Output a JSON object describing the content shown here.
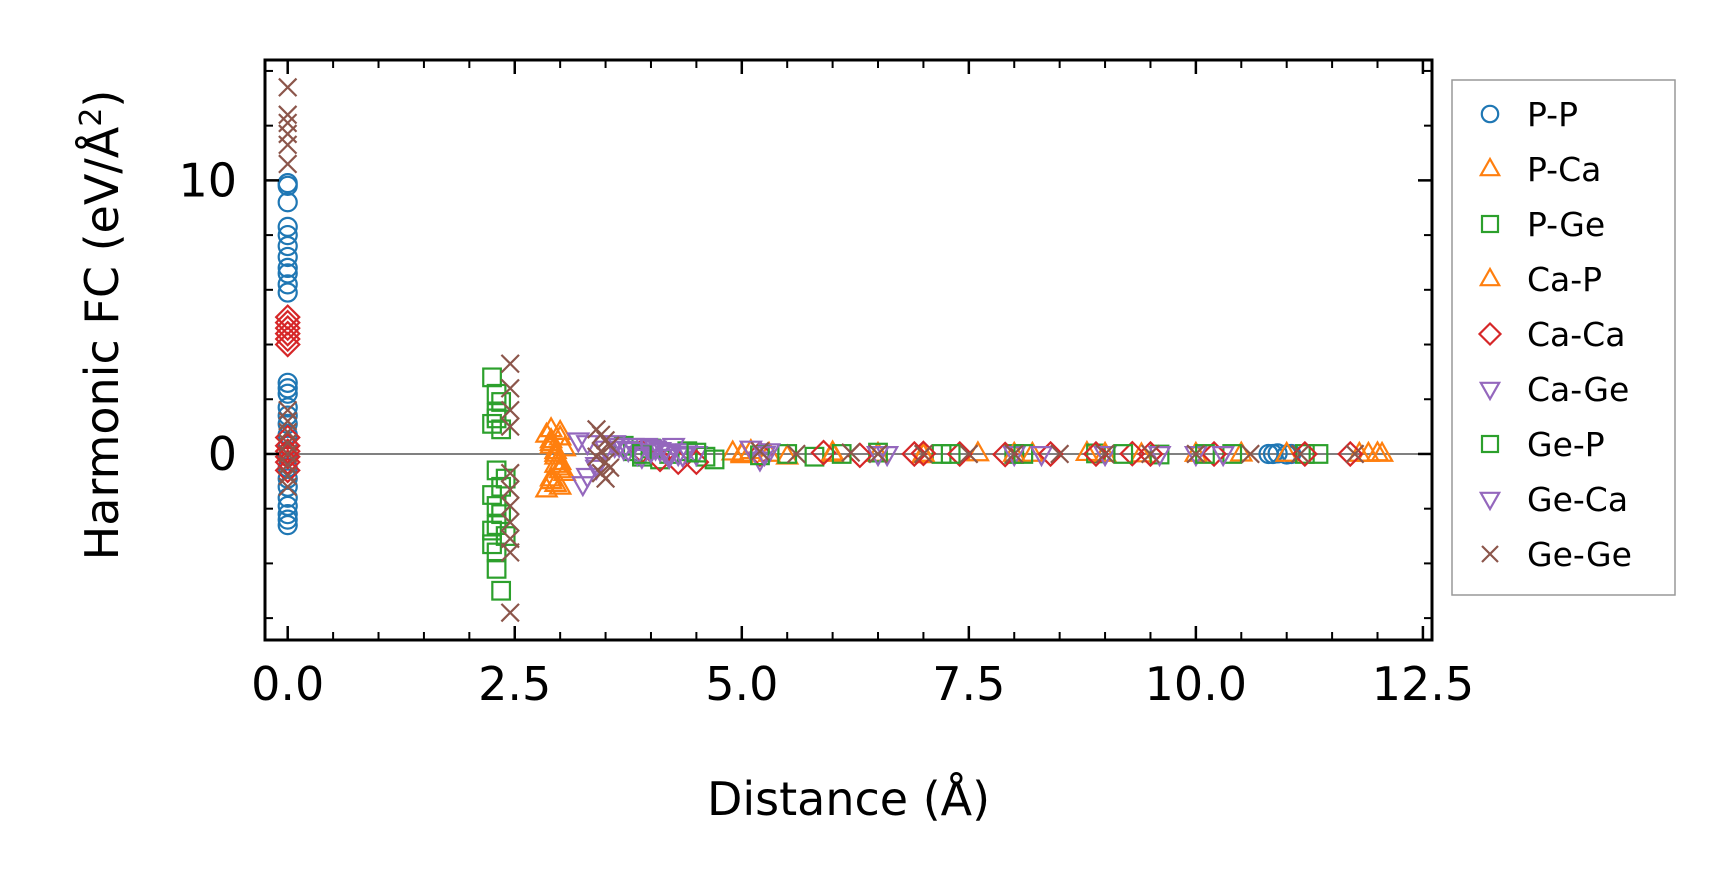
{
  "chart_data": {
    "type": "scatter",
    "xlabel": "Distance (Å)",
    "ylabel_main": "Harmonic FC (eV/Å",
    "ylabel_sup": "2",
    "ylabel_close": ")",
    "xlim": [
      -0.25,
      12.6
    ],
    "ylim": [
      -6.8,
      14.4
    ],
    "x_ticks": [
      0.0,
      2.5,
      5.0,
      7.5,
      10.0,
      12.5
    ],
    "x_tick_labels": [
      "0.0",
      "2.5",
      "5.0",
      "7.5",
      "10.0",
      "12.5"
    ],
    "y_ticks": [
      0,
      10
    ],
    "y_tick_labels": [
      "0",
      "10"
    ],
    "zero_line": true,
    "grid": false,
    "legend_position": "outside-right",
    "series": [
      {
        "name": "P-P",
        "marker": "circle",
        "color": "#1f77b4",
        "x": [
          0,
          0,
          0,
          0,
          0,
          0,
          0,
          0,
          0,
          0,
          0,
          0,
          0,
          0,
          0,
          0,
          0,
          0,
          0,
          0,
          0,
          0,
          0,
          0,
          0,
          0,
          0,
          0,
          10.8,
          10.85,
          10.9,
          11.0,
          11.05
        ],
        "y": [
          9.9,
          9.8,
          9.2,
          8.3,
          8.0,
          7.6,
          7.2,
          6.8,
          6.6,
          6.2,
          5.9,
          2.6,
          2.4,
          2.2,
          1.7,
          1.4,
          1.1,
          0.7,
          0.3,
          -0.1,
          -0.5,
          -0.9,
          -1.2,
          -1.6,
          -1.9,
          -2.2,
          -2.4,
          -2.6,
          0.0,
          0.0,
          0.02,
          -0.02,
          0.0
        ]
      },
      {
        "name": "P-Ca",
        "marker": "triangle-up",
        "color": "#ff7f0e",
        "x": [
          2.85,
          2.9,
          2.9,
          2.95,
          2.95,
          3.0,
          3.0,
          3.05,
          2.9,
          2.95,
          3.0,
          2.85,
          2.9,
          3.0,
          3.05,
          2.95,
          4.9,
          5.0,
          5.1,
          5.3,
          5.5,
          6.0,
          6.5,
          7.0,
          7.6,
          8.2,
          8.8,
          9.4,
          10.0,
          10.5,
          11.0,
          11.9,
          12.0,
          12.05
        ],
        "y": [
          0.7,
          0.5,
          0.3,
          0.1,
          -0.1,
          -0.3,
          -0.5,
          -0.7,
          -0.9,
          -1.1,
          -1.2,
          -1.3,
          0.9,
          0.6,
          0.2,
          -0.4,
          0.05,
          -0.05,
          0.1,
          0.0,
          -0.1,
          0.05,
          0.0,
          -0.05,
          0.02,
          0.0,
          0.03,
          -0.02,
          0.0,
          0.01,
          0.0,
          0.0,
          0.02,
          0.0
        ]
      },
      {
        "name": "P-Ge",
        "marker": "square",
        "color": "#2ca02c",
        "x": [
          2.25,
          2.3,
          2.35,
          2.3,
          2.25,
          2.3,
          2.4,
          2.35,
          2.25,
          2.3,
          2.35,
          2.3,
          2.4,
          2.25,
          2.3,
          2.35,
          3.7,
          3.8,
          3.9,
          4.0,
          4.1,
          4.2,
          4.4,
          4.6,
          4.7,
          5.5,
          5.8,
          6.5,
          7.2,
          8.0,
          8.9,
          9.6,
          10.4,
          11.2,
          11.35
        ],
        "y": [
          2.8,
          2.2,
          1.9,
          1.5,
          1.1,
          -0.6,
          -0.9,
          -1.2,
          -1.5,
          -1.9,
          -2.2,
          -2.6,
          -3.0,
          -3.3,
          -4.2,
          -5.0,
          0.3,
          0.1,
          -0.1,
          0.2,
          -0.2,
          0.0,
          0.1,
          -0.1,
          -0.2,
          0.0,
          -0.1,
          0.05,
          0.0,
          0.0,
          0.02,
          -0.02,
          0.0,
          0.0,
          0.0
        ]
      },
      {
        "name": "Ca-P",
        "marker": "triangle-up",
        "color": "#ff7f0e",
        "x": [
          2.9,
          2.95,
          3.0,
          2.9,
          3.0,
          5.0,
          6.0,
          7.0,
          8.0,
          9.0,
          11.8
        ],
        "y": [
          0.4,
          0.0,
          -0.6,
          -1.0,
          0.8,
          0.0,
          0.0,
          0.0,
          0.0,
          0.0,
          0.0
        ]
      },
      {
        "name": "Ca-Ca",
        "marker": "diamond",
        "color": "#d62728",
        "x": [
          0,
          0,
          0,
          0,
          0,
          0,
          0,
          0,
          0,
          0,
          0,
          0,
          3.9,
          4.1,
          4.3,
          4.5,
          5.2,
          5.9,
          6.3,
          6.9,
          7.0,
          7.4,
          7.9,
          8.4,
          8.9,
          9.3,
          9.5,
          10.2,
          11.2,
          11.7
        ],
        "y": [
          5.0,
          4.8,
          4.6,
          4.4,
          4.2,
          4.0,
          0.6,
          0.3,
          0.1,
          -0.1,
          -0.3,
          -0.6,
          0.1,
          -0.2,
          -0.3,
          -0.3,
          0.0,
          0.05,
          -0.05,
          0.0,
          0.02,
          0.0,
          -0.02,
          0.0,
          0.0,
          0.01,
          0.0,
          0.0,
          0.0,
          0.0
        ]
      },
      {
        "name": "Ca-Ge",
        "marker": "triangle-down",
        "color": "#9467bd",
        "x": [
          3.2,
          3.25,
          3.3,
          3.4,
          3.5,
          3.6,
          3.65,
          3.7,
          3.75,
          3.8,
          3.85,
          3.9,
          3.95,
          4.0,
          4.05,
          4.1,
          4.15,
          4.2,
          4.25,
          4.3,
          4.35,
          4.4,
          4.5,
          5.1,
          5.2,
          5.3,
          6.5,
          8.0,
          9.0,
          10.0
        ],
        "y": [
          0.5,
          -1.1,
          -0.8,
          -0.4,
          0.2,
          0.4,
          0.3,
          0.2,
          0.15,
          0.3,
          0.0,
          -0.1,
          0.3,
          0.25,
          0.2,
          0.15,
          0.1,
          0.05,
          0.3,
          0.0,
          -0.05,
          0.1,
          0.0,
          0.2,
          -0.2,
          0.1,
          0.0,
          0.0,
          0.0,
          0.0
        ]
      },
      {
        "name": "Ge-P",
        "marker": "square",
        "color": "#2ca02c",
        "x": [
          2.3,
          2.35,
          2.25,
          2.3,
          3.9,
          4.5,
          5.2,
          6.1,
          7.3,
          8.1,
          9.2,
          10.1
        ],
        "y": [
          1.3,
          0.9,
          -2.8,
          -3.6,
          0.0,
          0.05,
          -0.05,
          0.0,
          0.0,
          0.0,
          0.0,
          0.0
        ]
      },
      {
        "name": "Ge-Ca",
        "marker": "triangle-down",
        "color": "#9467bd",
        "x": [
          3.3,
          3.4,
          3.6,
          4.0,
          4.2,
          5.25,
          6.6,
          8.3,
          9.6,
          10.3
        ],
        "y": [
          0.4,
          -0.5,
          0.3,
          0.1,
          -0.1,
          0.0,
          0.0,
          0.0,
          0.0,
          0.0
        ]
      },
      {
        "name": "Ge-Ge",
        "marker": "x",
        "color": "#8c564b",
        "x": [
          0,
          0,
          0,
          0,
          0,
          0,
          0,
          0,
          0,
          0,
          0,
          0,
          0,
          0,
          2.45,
          2.45,
          2.45,
          2.45,
          2.45,
          2.45,
          2.45,
          2.45,
          2.45,
          2.45,
          2.45,
          3.4,
          3.45,
          3.5,
          3.55,
          3.45,
          3.4,
          3.5,
          3.55,
          3.45,
          3.5,
          5.2,
          5.6,
          6.2,
          6.5,
          7.0,
          7.5,
          8.0,
          8.5,
          9.0,
          9.5,
          10.0,
          10.6,
          11.15,
          11.75
        ],
        "y": [
          13.4,
          12.4,
          12.1,
          11.7,
          11.3,
          10.6,
          1.6,
          1.2,
          0.8,
          0.4,
          0.0,
          -0.4,
          -0.8,
          -1.2,
          3.3,
          2.4,
          1.6,
          1.0,
          -0.7,
          -1.3,
          -1.9,
          -2.5,
          -3.1,
          -3.6,
          -5.8,
          0.9,
          0.7,
          0.5,
          0.3,
          0.1,
          -0.1,
          -0.3,
          -0.5,
          -0.7,
          -0.9,
          0.1,
          0.0,
          0.05,
          0.0,
          0.0,
          0.0,
          0.0,
          0.0,
          0.0,
          0.0,
          0.0,
          0.0,
          0.0,
          0.0
        ]
      }
    ]
  }
}
